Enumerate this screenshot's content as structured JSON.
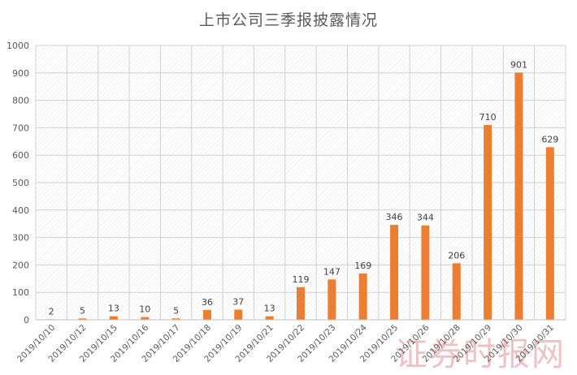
{
  "chart_data": {
    "type": "bar",
    "title": "上市公司三季报披露情况",
    "xlabel": "",
    "ylabel": "",
    "ylim": [
      0,
      1000
    ],
    "yticks": [
      0,
      100,
      200,
      300,
      400,
      500,
      600,
      700,
      800,
      900,
      1000
    ],
    "grid": true,
    "legend": "none",
    "bar_color": "#ED7D31",
    "categories": [
      "2019/10/10",
      "2019/10/12",
      "2019/10/15",
      "2019/10/16",
      "2019/10/17",
      "2019/10/18",
      "2019/10/19",
      "2019/10/21",
      "2019/10/22",
      "2019/10/23",
      "2019/10/24",
      "2019/10/25",
      "2019/10/26",
      "2019/10/28",
      "2019/10/29",
      "2019/10/30",
      "2019/10/31"
    ],
    "values": [
      2,
      5,
      13,
      10,
      5,
      36,
      37,
      13,
      119,
      147,
      169,
      346,
      344,
      206,
      710,
      901,
      629
    ]
  },
  "watermark": "证券时报网"
}
